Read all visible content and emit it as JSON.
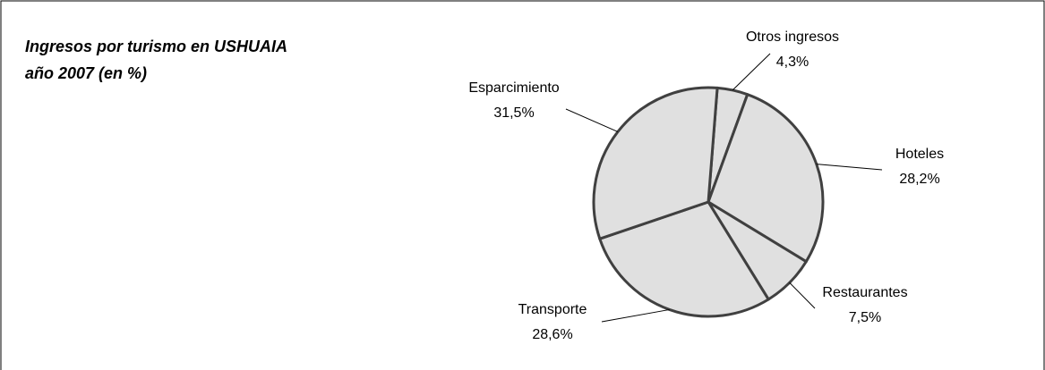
{
  "chart_data": {
    "type": "pie",
    "title": [
      "Ingresos por turismo en USHUAIA",
      "año 2007 (en %)"
    ],
    "categories": [
      "Otros ingresos",
      "Hoteles",
      "Restaurantes",
      "Transporte",
      "Esparcimiento"
    ],
    "values": [
      4.3,
      28.2,
      7.5,
      28.6,
      31.5
    ],
    "value_labels": [
      "4,3%",
      "28,2%",
      "7,5%",
      "28,6%",
      "31,5%"
    ],
    "color": "#e0e0e0"
  }
}
